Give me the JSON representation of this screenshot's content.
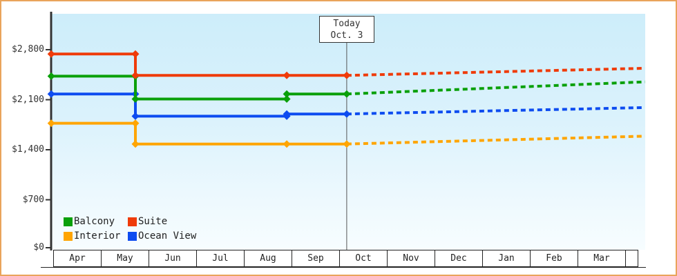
{
  "window": {
    "border_color": "#e9a45b",
    "background": "#ffffff"
  },
  "legend": [
    {
      "label": "Balcony",
      "color": "#0aa00a"
    },
    {
      "label": "Suite",
      "color": "#ef3b09"
    },
    {
      "label": "Interior",
      "color": "#ffa502"
    },
    {
      "label": "Ocean View",
      "color": "#0d4cf0"
    }
  ],
  "chart_data": {
    "type": "line",
    "title": "",
    "xlabel": "",
    "ylabel": "",
    "x_unit": "months since Apr 1",
    "months": [
      "Apr",
      "May",
      "Jun",
      "Jul",
      "Aug",
      "Sep",
      "Oct",
      "Nov",
      "Dec",
      "Jan",
      "Feb",
      "Mar"
    ],
    "yticks": [
      {
        "label": "$0",
        "value": 0
      },
      {
        "label": "$700",
        "value": 700
      },
      {
        "label": "$1,400",
        "value": 1400
      },
      {
        "label": "$2,100",
        "value": 2100
      },
      {
        "label": "$2,800",
        "value": 2800
      }
    ],
    "ylim": [
      0,
      3300
    ],
    "xlim_months": [
      0,
      12.24
    ],
    "grid": "off",
    "legend_position": "inside-bottom-left",
    "today": {
      "line1": "Today",
      "line2": "Oct. 3",
      "m": 6.07
    },
    "note": "solid = price history (stepped), dashed = forecast after today",
    "series": [
      {
        "name": "Interior",
        "color": "#ffa502",
        "solid": [
          [
            -0.04,
            1770
          ],
          [
            1.7,
            1770
          ],
          [
            1.7,
            1480
          ],
          [
            6.07,
            1480
          ]
        ],
        "dashed": [
          [
            6.07,
            1480
          ],
          [
            12.24,
            1590
          ]
        ],
        "markers": [
          [
            -0.04,
            1770
          ],
          [
            1.7,
            1770
          ],
          [
            1.7,
            1480
          ],
          [
            4.83,
            1480
          ],
          [
            6.07,
            1480
          ]
        ]
      },
      {
        "name": "Ocean View",
        "color": "#0d4cf0",
        "solid": [
          [
            -0.04,
            2180
          ],
          [
            1.7,
            2180
          ],
          [
            1.7,
            1870
          ],
          [
            4.83,
            1870
          ],
          [
            4.83,
            1900
          ],
          [
            6.07,
            1900
          ]
        ],
        "dashed": [
          [
            6.07,
            1900
          ],
          [
            12.24,
            1990
          ]
        ],
        "markers": [
          [
            -0.04,
            2180
          ],
          [
            1.7,
            2180
          ],
          [
            1.7,
            1870
          ],
          [
            4.83,
            1870
          ],
          [
            4.83,
            1900
          ],
          [
            6.07,
            1900
          ]
        ]
      },
      {
        "name": "Balcony",
        "color": "#0aa00a",
        "solid": [
          [
            -0.04,
            2430
          ],
          [
            1.7,
            2430
          ],
          [
            1.7,
            2110
          ],
          [
            4.83,
            2110
          ],
          [
            4.83,
            2180
          ],
          [
            6.07,
            2180
          ]
        ],
        "dashed": [
          [
            6.07,
            2180
          ],
          [
            12.24,
            2350
          ]
        ],
        "markers": [
          [
            -0.04,
            2430
          ],
          [
            1.7,
            2430
          ],
          [
            1.7,
            2110
          ],
          [
            4.83,
            2110
          ],
          [
            4.83,
            2180
          ],
          [
            6.07,
            2180
          ]
        ]
      },
      {
        "name": "Suite",
        "color": "#ef3b09",
        "solid": [
          [
            -0.04,
            2740
          ],
          [
            1.7,
            2740
          ],
          [
            1.7,
            2440
          ],
          [
            6.07,
            2440
          ]
        ],
        "dashed": [
          [
            6.07,
            2440
          ],
          [
            12.24,
            2540
          ]
        ],
        "markers": [
          [
            -0.04,
            2740
          ],
          [
            1.7,
            2740
          ],
          [
            1.7,
            2440
          ],
          [
            4.83,
            2440
          ],
          [
            6.07,
            2440
          ]
        ]
      }
    ]
  }
}
